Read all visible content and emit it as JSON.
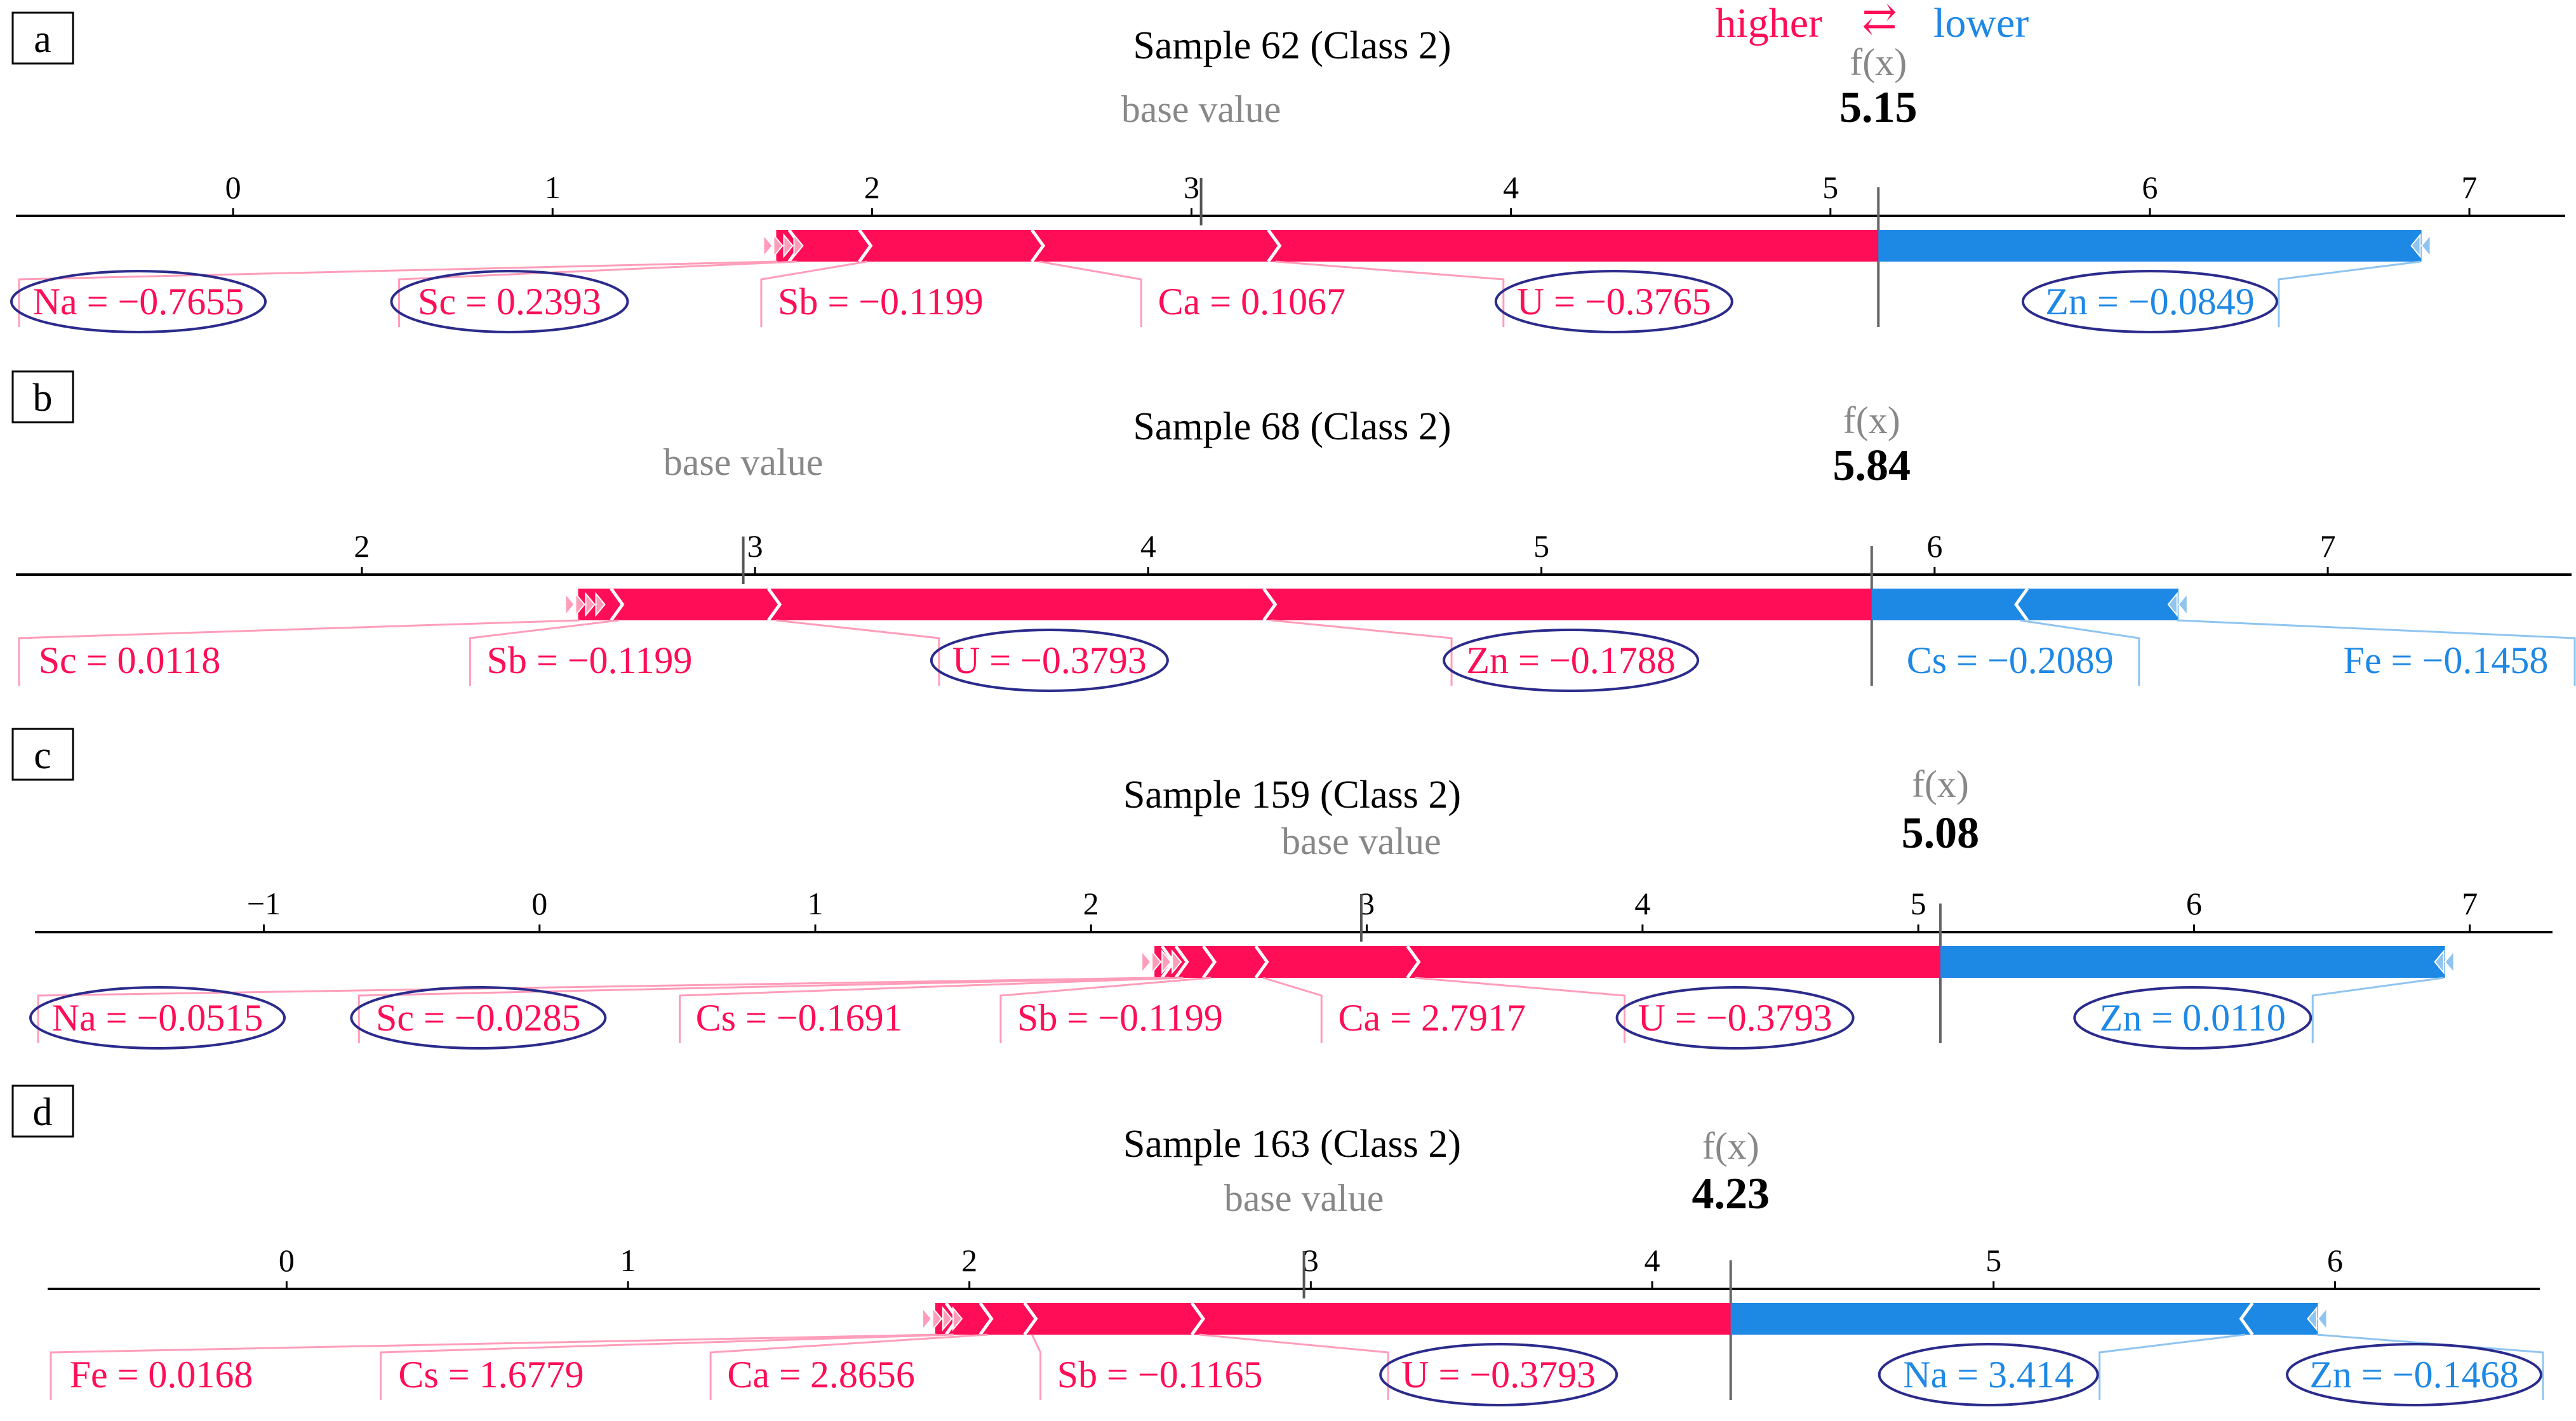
{
  "legend": {
    "higher": "higher",
    "lower": "lower",
    "arrow": "⇄"
  },
  "labels": {
    "fx": "f(x)",
    "base_value": "base value"
  },
  "colors": {
    "positive": "#ff0d57",
    "negative": "#1e88e5",
    "positive_light": "#ff9dba",
    "negative_light": "#8fc4f0",
    "ellipse": "#2b2b8c",
    "base": "#888888"
  },
  "chart_data": [
    {
      "type": "force_plot",
      "panel": "a",
      "title": "Sample 62 (Class 2)",
      "fx": 5.15,
      "fx_text": "5.15",
      "base_value": 3.03,
      "xlim": [
        -0.68,
        7.3
      ],
      "ticks": [
        0,
        1,
        2,
        3,
        4,
        5,
        6,
        7
      ],
      "positive": [
        {
          "label": "Na = −0.7655",
          "value": 0.06,
          "circled": true
        },
        {
          "label": "Sc = 0.2393",
          "value": 0.22,
          "circled": true
        },
        {
          "label": "Sb = −0.1199",
          "value": 0.54,
          "circled": false
        },
        {
          "label": "Ca = 0.1067",
          "value": 0.74,
          "circled": false
        },
        {
          "label": "U = −0.3765",
          "value": 1.89,
          "circled": true
        }
      ],
      "negative": [
        {
          "label": "Zn = −0.0849",
          "value": 1.7,
          "circled": true
        }
      ]
    },
    {
      "type": "force_plot",
      "panel": "b",
      "title": "Sample 68 (Class 2)",
      "fx": 5.84,
      "fx_text": "5.84",
      "base_value": 2.97,
      "xlim": [
        1.12,
        7.62
      ],
      "ticks": [
        2,
        3,
        4,
        5,
        6,
        7
      ],
      "positive": [
        {
          "label": "Sc = 0.0118",
          "value": 0.1,
          "circled": false
        },
        {
          "label": "Sb = −0.1199",
          "value": 0.4,
          "circled": false
        },
        {
          "label": "U = −0.3793",
          "value": 1.26,
          "circled": true
        },
        {
          "label": "Zn = −0.1788",
          "value": 1.53,
          "circled": true
        }
      ],
      "negative": [
        {
          "label": "Cs = −0.2089",
          "value": 0.38,
          "circled": false
        },
        {
          "label": "Fe = −0.1458",
          "value": 0.4,
          "circled": false
        }
      ]
    },
    {
      "type": "force_plot",
      "panel": "c",
      "title": "Sample 159 (Class 2)",
      "fx": 5.08,
      "fx_text": "5.08",
      "base_value": 2.98,
      "xlim": [
        -1.83,
        7.3
      ],
      "ticks": [
        -1,
        0,
        1,
        2,
        3,
        4,
        5,
        6,
        7
      ],
      "positive": [
        {
          "label": "Na = −0.0515",
          "value": 0.05,
          "circled": true
        },
        {
          "label": "Sc = −0.0285",
          "value": 0.05,
          "circled": true
        },
        {
          "label": "Cs = −0.1691",
          "value": 0.1,
          "circled": false
        },
        {
          "label": "Sb = −0.1199",
          "value": 0.19,
          "circled": false
        },
        {
          "label": "Ca = 2.7917",
          "value": 0.55,
          "circled": false
        },
        {
          "label": "U = −0.3793",
          "value": 1.91,
          "circled": true
        }
      ],
      "negative": [
        {
          "label": "Zn = 0.0110",
          "value": 1.83,
          "circled": true
        }
      ]
    },
    {
      "type": "force_plot",
      "panel": "d",
      "title": "Sample 163 (Class 2)",
      "fx": 4.23,
      "fx_text": "4.23",
      "base_value": 2.98,
      "xlim": [
        -0.7,
        6.6
      ],
      "ticks": [
        0,
        1,
        2,
        3,
        4,
        5,
        6
      ],
      "positive": [
        {
          "label": "Fe = 0.0168",
          "value": 0.05,
          "circled": false
        },
        {
          "label": "Cs = 1.6779",
          "value": 0.1,
          "circled": false
        },
        {
          "label": "Ca = 2.8656",
          "value": 0.13,
          "circled": false
        },
        {
          "label": "Sb = −0.1165",
          "value": 0.49,
          "circled": false
        },
        {
          "label": "U = −0.3793",
          "value": 1.56,
          "circled": true
        }
      ],
      "negative": [
        {
          "label": "Na = 3.414",
          "value": 1.51,
          "circled": true
        },
        {
          "label": "Zn = −0.1468",
          "value": 0.21,
          "circled": true
        }
      ]
    }
  ]
}
